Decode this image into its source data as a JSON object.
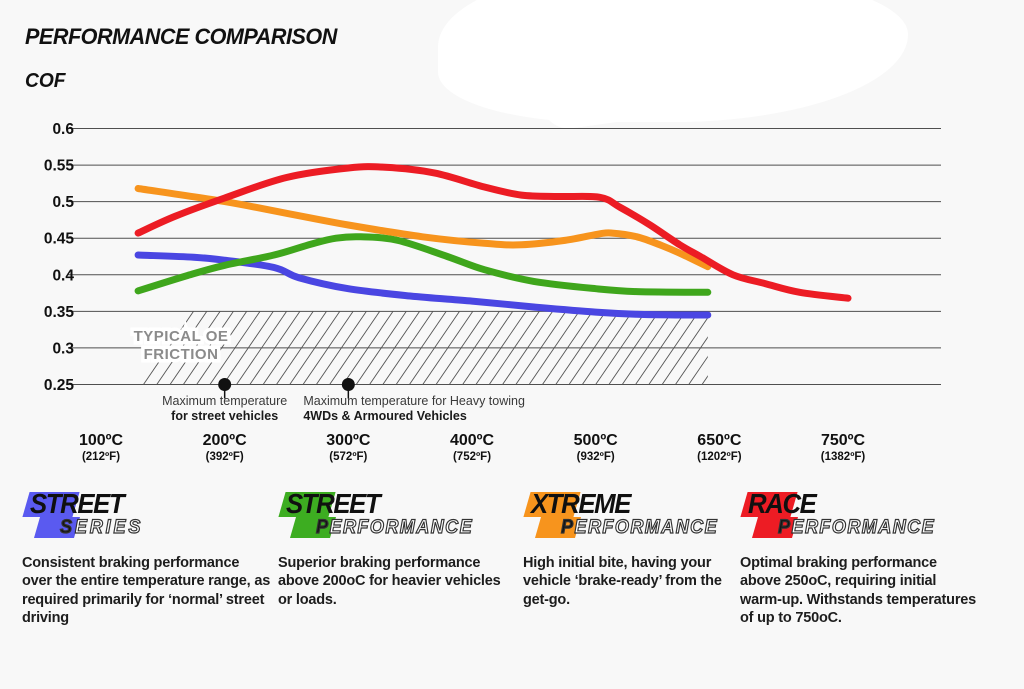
{
  "title": "PERFORMANCE COMPARISON",
  "y_axis_label": "COF",
  "chart_data": {
    "type": "line",
    "title": "PERFORMANCE COMPARISON",
    "ylabel": "COF",
    "grid": true,
    "legend_position": "bottom",
    "ylim": [
      0.25,
      0.6
    ],
    "y_axis": {
      "values": [
        0.6,
        0.55,
        0.5,
        0.45,
        0.4,
        0.35,
        0.3,
        0.25
      ],
      "labels": [
        "0.6",
        "0.55",
        "0.5",
        "0.45",
        "0.4",
        "0.35",
        "0.3",
        "0.25"
      ]
    },
    "x_axis": {
      "ticks_c": [
        100,
        200,
        300,
        400,
        500,
        650,
        750
      ],
      "labels_c": [
        "100ºC",
        "200ºC",
        "300ºC",
        "400ºC",
        "500ºC",
        "650ºC",
        "750ºC"
      ],
      "labels_f": [
        "(212ºF)",
        "(392ºF)",
        "(572ºF)",
        "(752ºF)",
        "(932ºF)",
        "(1202ºF)",
        "(1382ºF)"
      ]
    },
    "series": [
      {
        "name": "Street Series",
        "color": "#4a46e2",
        "points": [
          [
            130,
            0.427
          ],
          [
            175,
            0.424
          ],
          [
            200,
            0.42
          ],
          [
            240,
            0.41
          ],
          [
            260,
            0.396
          ],
          [
            300,
            0.381
          ],
          [
            350,
            0.371
          ],
          [
            400,
            0.364
          ],
          [
            450,
            0.356
          ],
          [
            500,
            0.349
          ],
          [
            550,
            0.346
          ],
          [
            600,
            0.345
          ],
          [
            636,
            0.345
          ]
        ]
      },
      {
        "name": "Street Performance",
        "color": "#3fa61c",
        "points": [
          [
            130,
            0.378
          ],
          [
            170,
            0.399
          ],
          [
            200,
            0.413
          ],
          [
            240,
            0.427
          ],
          [
            270,
            0.442
          ],
          [
            290,
            0.45
          ],
          [
            310,
            0.452
          ],
          [
            340,
            0.447
          ],
          [
            380,
            0.425
          ],
          [
            410,
            0.407
          ],
          [
            450,
            0.391
          ],
          [
            500,
            0.381
          ],
          [
            550,
            0.377
          ],
          [
            636,
            0.376
          ]
        ]
      },
      {
        "name": "Xtreme Performance",
        "color": "#f7941d",
        "points": [
          [
            130,
            0.518
          ],
          [
            200,
            0.5
          ],
          [
            250,
            0.484
          ],
          [
            300,
            0.468
          ],
          [
            360,
            0.452
          ],
          [
            410,
            0.443
          ],
          [
            440,
            0.441
          ],
          [
            475,
            0.447
          ],
          [
            505,
            0.456
          ],
          [
            520,
            0.457
          ],
          [
            550,
            0.452
          ],
          [
            580,
            0.44
          ],
          [
            605,
            0.428
          ],
          [
            636,
            0.411
          ]
        ]
      },
      {
        "name": "Race Performance",
        "color": "#ec1c24",
        "points": [
          [
            130,
            0.457
          ],
          [
            160,
            0.48
          ],
          [
            200,
            0.505
          ],
          [
            250,
            0.533
          ],
          [
            300,
            0.546
          ],
          [
            330,
            0.547
          ],
          [
            370,
            0.539
          ],
          [
            410,
            0.52
          ],
          [
            440,
            0.509
          ],
          [
            470,
            0.507
          ],
          [
            505,
            0.506
          ],
          [
            530,
            0.492
          ],
          [
            566,
            0.468
          ],
          [
            602,
            0.441
          ],
          [
            627,
            0.425
          ],
          [
            661,
            0.4
          ],
          [
            687,
            0.388
          ],
          [
            715,
            0.376
          ],
          [
            754,
            0.368
          ]
        ]
      }
    ],
    "oe_friction_band": {
      "label_line1": "TYPICAL OE",
      "label_line2": "FRICTION",
      "cof_from": 0.25,
      "cof_to": 0.35,
      "temp_from_c": 129,
      "temp_to_c": 636
    },
    "markers": [
      {
        "temp_c": 200,
        "label_line1": "Maximum temperature",
        "label_line2": "for street vehicles",
        "align": "center"
      },
      {
        "temp_c": 300,
        "label_line1": "Maximum temperature for Heavy towing",
        "label_line2": "4WDs & Armoured Vehicles",
        "align": "left"
      }
    ]
  },
  "legend": [
    {
      "line1": "STREET",
      "line2": "SERIES",
      "color": "#5a5af0",
      "description": "Consistent braking performance over the entire temperature range, as required primarily for ‘normal’ street driving"
    },
    {
      "line1": "STREET",
      "line2": "PERFORMANCE",
      "color": "#3dad21",
      "description": "Superior braking performance above 200oC for heavier vehicles or loads."
    },
    {
      "line1": "XTREME",
      "line2": "PERFORMANCE",
      "color": "#f7941d",
      "description": "High initial bite, having your vehicle ‘brake-ready’ from the get-go."
    },
    {
      "line1": "RACE",
      "line2": "PERFORMANCE",
      "color": "#ed1c24",
      "description": "Optimal braking performance above 250oC, requiring initial warm-up. Withstands temperatures of up to 750oC."
    }
  ]
}
